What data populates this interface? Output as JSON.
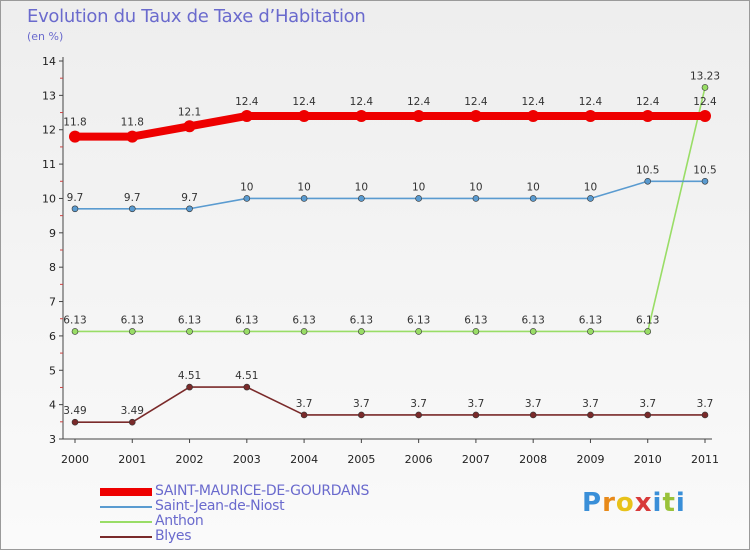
{
  "title": "Evolution du Taux de Taxe d’Habitation",
  "subtitle": "(en %)",
  "chart_data": {
    "type": "line",
    "title": "Evolution du Taux de Taxe d’Habitation",
    "subtitle": "(en %)",
    "x": [
      "2000",
      "2001",
      "2002",
      "2003",
      "2004",
      "2005",
      "2006",
      "2007",
      "2008",
      "2009",
      "2010",
      "2011"
    ],
    "ylim": [
      3,
      14
    ],
    "y_ticks": [
      "3",
      "4",
      "5",
      "6",
      "7",
      "8",
      "9",
      "10",
      "11",
      "12",
      "13",
      "14"
    ],
    "grid": false,
    "legend_position": "bottom-left",
    "series": [
      {
        "name": "SAINT-MAURICE-DE-GOURDANS",
        "color": "#ee0000",
        "values": [
          11.8,
          11.8,
          12.1,
          12.4,
          12.4,
          12.4,
          12.4,
          12.4,
          12.4,
          12.4,
          12.4,
          12.4
        ],
        "labels": [
          "11.8",
          "11.8",
          "12.1",
          "12.4",
          "12.4",
          "12.4",
          "12.4",
          "12.4",
          "12.4",
          "12.4",
          "12.4",
          "12.4"
        ]
      },
      {
        "name": "Saint-Jean-de-Niost",
        "color": "#5a9bd0",
        "values": [
          9.7,
          9.7,
          9.7,
          10,
          10,
          10,
          10,
          10,
          10,
          10,
          10.5,
          10.5
        ],
        "labels": [
          "9.7",
          "9.7",
          "9.7",
          "10",
          "10",
          "10",
          "10",
          "10",
          "10",
          "10",
          "10.5",
          "10.5"
        ]
      },
      {
        "name": "Anthon",
        "color": "#99dd66",
        "values": [
          6.13,
          6.13,
          6.13,
          6.13,
          6.13,
          6.13,
          6.13,
          6.13,
          6.13,
          6.13,
          6.13,
          13.23
        ],
        "labels": [
          "6.13",
          "6.13",
          "6.13",
          "6.13",
          "6.13",
          "6.13",
          "6.13",
          "6.13",
          "6.13",
          "6.13",
          "6.13",
          "13.23"
        ]
      },
      {
        "name": "Blyes",
        "color": "#7a2a2a",
        "values": [
          3.49,
          3.49,
          4.51,
          4.51,
          3.7,
          3.7,
          3.7,
          3.7,
          3.7,
          3.7,
          3.7,
          3.7
        ],
        "labels": [
          "3.49",
          "3.49",
          "4.51",
          "4.51",
          "3.7",
          "3.7",
          "3.7",
          "3.7",
          "3.7",
          "3.7",
          "3.7",
          "3.7"
        ]
      }
    ]
  },
  "logo": {
    "text": "Proxiti",
    "colors": [
      "#3a8fd8",
      "#e88a1a",
      "#e8c21a",
      "#d83a3a",
      "#3a8fd8",
      "#9ac23a",
      "#3a8fd8"
    ]
  }
}
